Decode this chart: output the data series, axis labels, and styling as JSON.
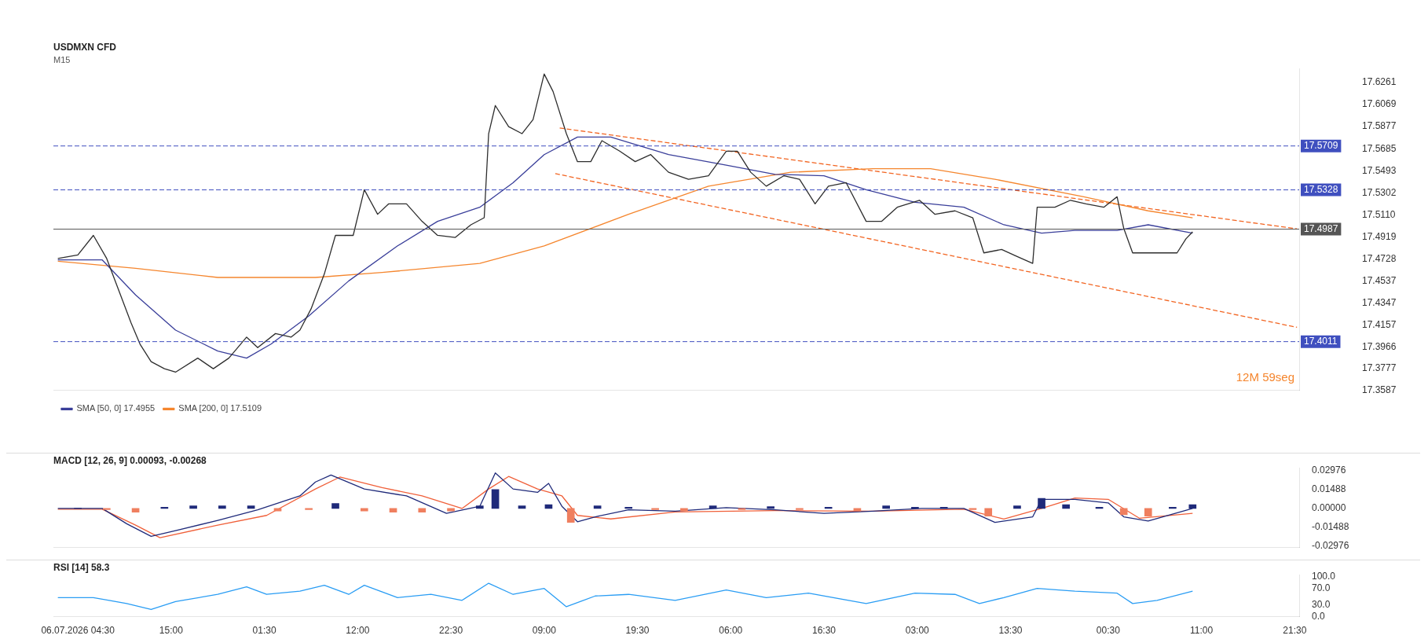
{
  "chart_data": [
    {
      "type": "line",
      "title": "USDMXN CFD",
      "subtitle": "M15",
      "legend": "bottom left",
      "marker": "none",
      "tick_labels": "y",
      "annotations": [
        "12M 59seg"
      ],
      "xlim": [
        "2026-07-06T01:45",
        "2026-07-11T22:00"
      ],
      "xticks": [
        {
          "value": "2026-07-06T04:30",
          "label": null
        },
        {
          "value": "2026-07-06T15:00",
          "label": null
        },
        {
          "value": "2026-07-07T01:30",
          "label": null
        },
        {
          "value": "2026-07-07T12:00",
          "label": null
        },
        {
          "value": "2026-07-07T22:30",
          "label": null
        },
        {
          "value": "2026-07-08T09:00",
          "label": null
        },
        {
          "value": "2026-07-08T19:30",
          "label": null
        },
        {
          "value": "2026-07-09T06:00",
          "label": null
        },
        {
          "value": "2026-07-09T16:30",
          "label": null
        },
        {
          "value": "2026-07-10T03:00",
          "label": null
        },
        {
          "value": "2026-07-10T13:30",
          "label": null
        },
        {
          "value": "2026-07-11T00:30",
          "label": null
        },
        {
          "value": "2026-07-11T11:00",
          "label": null
        },
        {
          "value": "2026-07-11T21:30",
          "label": null
        }
      ],
      "ylim": [
        17.3587,
        17.6381
      ],
      "yticks": [
        17.3587,
        17.3777,
        17.3966,
        17.4157,
        17.4347,
        17.4537,
        17.4728,
        17.4919,
        {
          "value": 17.511,
          "label": "17.5110"
        },
        17.5302,
        17.5493,
        17.5685,
        17.5877,
        17.6069,
        17.6261
      ],
      "ref_lines": [
        {
          "axis": "y",
          "value": 17.5709,
          "label": "17.5709",
          "color": "#3f4fbf",
          "line_style": "dashed"
        },
        {
          "axis": "y",
          "value": 17.5328,
          "label": "17.5328",
          "color": "#3f4fbf",
          "line_style": "dashed"
        },
        {
          "axis": "y",
          "value": 17.4011,
          "label": "17.4011",
          "color": "#3f4fbf",
          "line_style": "dashed"
        },
        {
          "axis": "y",
          "value": 17.4987,
          "label": "17.4987",
          "color": "#555555",
          "line_style": "solid"
        }
      ],
      "series": [
        {
          "color": "#2e2e2e",
          "x": [
            "2026-07-06T02:15",
            "2026-07-06T04:30",
            "2026-07-06T06:15",
            "2026-07-06T07:45",
            "2026-07-06T09:00",
            "2026-07-06T10:30",
            "2026-07-06T11:30",
            "2026-07-06T12:45",
            "2026-07-06T14:15",
            "2026-07-06T15:30",
            "2026-07-06T18:00",
            "2026-07-06T19:45",
            "2026-07-06T21:30",
            "2026-07-06T23:30",
            "2026-07-07T00:45",
            "2026-07-07T02:45",
            "2026-07-07T04:30",
            "2026-07-07T05:30",
            "2026-07-07T06:45",
            "2026-07-07T08:15",
            "2026-07-07T09:30",
            "2026-07-07T11:30",
            "2026-07-07T12:45",
            "2026-07-07T14:15",
            "2026-07-07T15:30",
            "2026-07-07T17:30",
            "2026-07-07T19:15",
            "2026-07-07T21:00",
            "2026-07-07T23:00",
            "2026-07-08T00:45",
            "2026-07-08T02:15",
            "2026-07-08T02:45",
            "2026-07-08T03:30",
            "2026-07-08T05:00",
            "2026-07-08T06:30",
            "2026-07-08T07:45",
            "2026-07-08T09:00",
            "2026-07-08T10:00",
            "2026-07-08T11:30",
            "2026-07-08T12:45",
            "2026-07-08T14:15",
            "2026-07-08T15:30",
            "2026-07-08T17:30",
            "2026-07-08T19:15",
            "2026-07-08T21:00",
            "2026-07-08T23:00",
            "2026-07-09T01:15",
            "2026-07-09T03:30",
            "2026-07-09T05:30",
            "2026-07-09T06:45",
            "2026-07-09T08:15",
            "2026-07-09T10:00",
            "2026-07-09T12:00",
            "2026-07-09T13:45",
            "2026-07-09T15:30",
            "2026-07-09T17:00",
            "2026-07-09T19:00",
            "2026-07-09T21:15",
            "2026-07-09T23:00",
            "2026-07-10T00:45",
            "2026-07-10T03:15",
            "2026-07-10T05:00",
            "2026-07-10T07:15",
            "2026-07-10T09:15",
            "2026-07-10T10:30",
            "2026-07-10T12:30",
            "2026-07-10T14:15",
            "2026-07-10T16:00",
            "2026-07-10T16:30",
            "2026-07-10T18:30",
            "2026-07-10T20:15",
            "2026-07-10T22:00",
            "2026-07-11T00:00",
            "2026-07-11T01:30",
            "2026-07-11T02:15",
            "2026-07-11T03:15",
            "2026-07-11T05:00",
            "2026-07-11T07:00",
            "2026-07-11T08:15",
            "2026-07-11T09:15",
            "2026-07-11T10:00"
          ],
          "values": [
            17.4732,
            17.4763,
            17.4933,
            17.4732,
            17.4477,
            17.4172,
            17.3989,
            17.3837,
            17.3776,
            17.3746,
            17.3868,
            17.3776,
            17.3868,
            17.405,
            17.3959,
            17.4081,
            17.405,
            17.4111,
            17.4294,
            17.4598,
            17.4933,
            17.4933,
            17.5329,
            17.5116,
            17.5207,
            17.5207,
            17.5055,
            17.4933,
            17.4915,
            17.5025,
            17.5086,
            17.5816,
            17.606,
            17.5877,
            17.5816,
            17.5938,
            17.6334,
            17.6182,
            17.5816,
            17.5573,
            17.5573,
            17.5755,
            17.5664,
            17.5573,
            17.5634,
            17.5481,
            17.542,
            17.5451,
            17.5664,
            17.5664,
            17.5481,
            17.536,
            17.5451,
            17.542,
            17.5207,
            17.536,
            17.539,
            17.5055,
            17.5055,
            17.5177,
            17.5238,
            17.5116,
            17.5146,
            17.5086,
            17.4781,
            17.4811,
            17.475,
            17.469,
            17.5177,
            17.5177,
            17.5238,
            17.5207,
            17.5177,
            17.5268,
            17.4994,
            17.4781,
            17.4781,
            17.4781,
            17.4781,
            17.4903,
            17.4964
          ]
        },
        {
          "name": "SMA [50, 0] 17.4955",
          "color": "#3a3f9a",
          "x": [
            "2026-07-06T02:15",
            "2026-07-06T07:15",
            "2026-07-06T11:00",
            "2026-07-06T15:30",
            "2026-07-06T20:15",
            "2026-07-06T23:30",
            "2026-07-07T02:15",
            "2026-07-07T06:30",
            "2026-07-07T11:00",
            "2026-07-07T16:30",
            "2026-07-07T21:00",
            "2026-07-08T01:45",
            "2026-07-08T05:30",
            "2026-07-08T09:00",
            "2026-07-08T12:45",
            "2026-07-08T16:30",
            "2026-07-08T23:00",
            "2026-07-09T05:30",
            "2026-07-09T11:00",
            "2026-07-09T16:30",
            "2026-07-09T21:15",
            "2026-07-10T02:45",
            "2026-07-10T08:15",
            "2026-07-10T12:45",
            "2026-07-10T17:00",
            "2026-07-10T20:45",
            "2026-07-11T01:30",
            "2026-07-11T05:00",
            "2026-07-11T10:00"
          ],
          "values": [
            17.472,
            17.472,
            17.4416,
            17.4111,
            17.3929,
            17.3868,
            17.399,
            17.4233,
            17.4538,
            17.4842,
            17.5055,
            17.5177,
            17.539,
            17.5634,
            17.5786,
            17.5786,
            17.5634,
            17.5542,
            17.5463,
            17.5451,
            17.5329,
            17.522,
            17.5177,
            17.5025,
            17.4952,
            17.4976,
            17.4976,
            17.5025,
            17.4952
          ]
        },
        {
          "name": "SMA [200, 0] 17.5109",
          "color": "#f5862e",
          "x": [
            "2026-07-06T02:15",
            "2026-07-06T11:00",
            "2026-07-06T20:15",
            "2026-07-07T01:45",
            "2026-07-07T07:15",
            "2026-07-07T14:45",
            "2026-07-08T01:45",
            "2026-07-08T09:00",
            "2026-07-08T18:30",
            "2026-07-09T03:30",
            "2026-07-09T12:45",
            "2026-07-09T22:00",
            "2026-07-10T04:30",
            "2026-07-10T11:45",
            "2026-07-10T21:45",
            "2026-07-11T05:00",
            "2026-07-11T10:00"
          ],
          "values": [
            17.4708,
            17.4647,
            17.4568,
            17.4568,
            17.4568,
            17.4611,
            17.469,
            17.4842,
            17.5116,
            17.536,
            17.5481,
            17.5512,
            17.5512,
            17.542,
            17.5268,
            17.5146,
            17.5086
          ]
        },
        {
          "color": "#f26522",
          "line_style": "dashed",
          "x": [
            "2026-07-08T10:45",
            "2026-07-11T21:45"
          ],
          "values": [
            17.5865,
            17.499
          ]
        },
        {
          "color": "#f26522",
          "line_style": "dashed",
          "x": [
            "2026-07-08T10:15",
            "2026-07-11T21:45"
          ],
          "values": [
            17.5469,
            17.4135
          ]
        }
      ]
    },
    {
      "type": "line",
      "title": "MACD [12, 26, 9] 0.00093, -0.00268",
      "marker": "none",
      "tick_labels": "y",
      "xlim": [
        "2026-07-06T01:45",
        "2026-07-11T22:00"
      ],
      "ylim": [
        -0.031,
        0.032
      ],
      "yticks": [
        {
          "value": -0.02976,
          "label": "-0.02976"
        },
        {
          "value": -0.01488,
          "label": "-0.01488"
        },
        {
          "value": 0,
          "label": "0.00000"
        },
        {
          "value": 0.01488,
          "label": "0.01488"
        },
        {
          "value": 0.02976,
          "label": "0.02976"
        }
      ],
      "series": [
        {
          "type": "bar",
          "x": [
            "2026-07-06T04:30",
            "2026-07-06T07:45",
            "2026-07-06T11:00",
            "2026-07-06T14:15",
            "2026-07-06T17:30",
            "2026-07-06T20:45",
            "2026-07-07T00:00",
            "2026-07-07T03:00",
            "2026-07-07T06:30",
            "2026-07-07T09:30",
            "2026-07-07T12:45",
            "2026-07-07T16:00",
            "2026-07-07T19:15",
            "2026-07-07T22:30",
            "2026-07-08T01:45",
            "2026-07-08T03:30",
            "2026-07-08T06:30",
            "2026-07-08T09:30",
            "2026-07-08T12:00",
            "2026-07-08T15:00",
            "2026-07-08T18:30",
            "2026-07-08T21:30",
            "2026-07-09T00:45",
            "2026-07-09T04:00",
            "2026-07-09T07:15",
            "2026-07-09T10:30",
            "2026-07-09T13:45",
            "2026-07-09T17:00",
            "2026-07-09T20:15",
            "2026-07-09T23:30",
            "2026-07-10T02:45",
            "2026-07-10T06:00",
            "2026-07-10T09:15",
            "2026-07-10T11:00",
            "2026-07-10T14:15",
            "2026-07-10T17:00",
            "2026-07-10T19:45",
            "2026-07-10T23:30",
            "2026-07-11T02:15",
            "2026-07-11T05:00",
            "2026-07-11T07:45",
            "2026-07-11T10:00"
          ],
          "values": [
            0.0003,
            -0.001,
            -0.003,
            0.001,
            0.002,
            0.002,
            0.002,
            -0.002,
            -0.001,
            0.004,
            -0.002,
            -0.003,
            -0.003,
            -0.002,
            0.002,
            0.015,
            0.002,
            0.003,
            -0.011,
            0.002,
            0.001,
            -0.001,
            -0.002,
            0.002,
            -0.001,
            0.0015,
            -0.001,
            0.001,
            -0.002,
            0.002,
            0.001,
            0.001,
            -0.001,
            -0.006,
            0.002,
            0.008,
            0.003,
            0.001,
            -0.005,
            -0.006,
            0.001,
            0.003
          ],
          "colors": [
            "#1f2a7a",
            "#ef7f5f",
            "#ef7f5f",
            "#1f2a7a",
            "#1f2a7a",
            "#1f2a7a",
            "#1f2a7a",
            "#ef7f5f",
            "#ef7f5f",
            "#1f2a7a",
            "#ef7f5f",
            "#ef7f5f",
            "#ef7f5f",
            "#ef7f5f",
            "#1f2a7a",
            "#1f2a7a",
            "#1f2a7a",
            "#1f2a7a",
            "#ef7f5f",
            "#1f2a7a",
            "#1f2a7a",
            "#ef7f5f",
            "#ef7f5f",
            "#1f2a7a",
            "#ef7f5f",
            "#1f2a7a",
            "#ef7f5f",
            "#1f2a7a",
            "#ef7f5f",
            "#1f2a7a",
            "#1f2a7a",
            "#1f2a7a",
            "#ef7f5f",
            "#ef7f5f",
            "#1f2a7a",
            "#1f2a7a",
            "#1f2a7a",
            "#1f2a7a",
            "#ef7f5f",
            "#ef7f5f",
            "#1f2a7a",
            "#1f2a7a"
          ]
        },
        {
          "color": "#1f2a7a",
          "x": [
            "2026-07-06T02:15",
            "2026-07-06T07:15",
            "2026-07-06T10:00",
            "2026-07-06T12:45",
            "2026-07-06T15:30",
            "2026-07-06T20:15",
            "2026-07-07T00:45",
            "2026-07-07T05:30",
            "2026-07-07T07:15",
            "2026-07-07T09:00",
            "2026-07-07T12:45",
            "2026-07-07T17:30",
            "2026-07-07T22:00",
            "2026-07-08T01:45",
            "2026-07-08T03:30",
            "2026-07-08T05:30",
            "2026-07-08T08:15",
            "2026-07-08T09:30",
            "2026-07-08T11:00",
            "2026-07-08T12:45",
            "2026-07-08T14:45",
            "2026-07-08T18:30",
            "2026-07-08T23:45",
            "2026-07-09T05:30",
            "2026-07-09T11:00",
            "2026-07-09T16:30",
            "2026-07-09T22:00",
            "2026-07-10T03:30",
            "2026-07-10T08:15",
            "2026-07-10T11:45",
            "2026-07-10T16:00",
            "2026-07-10T17:00",
            "2026-07-10T20:45",
            "2026-07-11T00:30",
            "2026-07-11T02:15",
            "2026-07-11T05:00",
            "2026-07-11T10:00"
          ],
          "values": [
            0,
            0,
            -0.0121,
            -0.022,
            -0.0176,
            -0.0094,
            -0.0011,
            0.0099,
            0.0209,
            0.0264,
            0.0154,
            0.0099,
            -0.0039,
            0.0017,
            0.0281,
            0.0154,
            0.0127,
            0.0198,
            0.0017,
            -0.0105,
            -0.0066,
            -0.0011,
            -0.0022,
            0.0006,
            -0.0011,
            -0.0039,
            -0.0022,
            0,
            0,
            -0.011,
            -0.0066,
            0.0072,
            0.0072,
            0.0044,
            -0.0066,
            -0.0099,
            0
          ]
        },
        {
          "color": "#f0603a",
          "x": [
            "2026-07-06T02:15",
            "2026-07-06T07:15",
            "2026-07-06T11:00",
            "2026-07-06T13:45",
            "2026-07-06T20:15",
            "2026-07-07T01:45",
            "2026-07-07T07:15",
            "2026-07-07T10:00",
            "2026-07-07T14:45",
            "2026-07-07T19:15",
            "2026-07-07T23:45",
            "2026-07-08T02:45",
            "2026-07-08T05:00",
            "2026-07-08T08:15",
            "2026-07-08T11:00",
            "2026-07-08T12:45",
            "2026-07-08T16:30",
            "2026-07-08T23:45",
            "2026-07-09T11:00",
            "2026-07-09T22:00",
            "2026-07-10T08:15",
            "2026-07-10T12:45",
            "2026-07-10T17:00",
            "2026-07-10T20:45",
            "2026-07-11T00:30",
            "2026-07-11T04:00",
            "2026-07-11T10:00"
          ],
          "values": [
            -0.0006,
            -0.0006,
            -0.0132,
            -0.0231,
            -0.0132,
            -0.0055,
            0.0154,
            0.0248,
            0.0165,
            0.0099,
            0,
            0.0154,
            0.0253,
            0.0154,
            0.0099,
            -0.0055,
            -0.0083,
            -0.0028,
            -0.0017,
            -0.0022,
            -0.0006,
            -0.0083,
            0,
            0.0083,
            0.0072,
            -0.0077,
            -0.0039
          ]
        }
      ]
    },
    {
      "type": "line",
      "title": "RSI [14] 58.3",
      "marker": "none",
      "xlim": [
        "2026-07-06T01:45",
        "2026-07-11T22:00"
      ],
      "xticks": [
        {
          "value": "2026-07-06T04:30",
          "label": "06.07.2026 04:30"
        },
        {
          "value": "2026-07-06T15:00",
          "label": "15:00"
        },
        {
          "value": "2026-07-07T01:30",
          "label": "01:30"
        },
        {
          "value": "2026-07-07T12:00",
          "label": "12:00"
        },
        {
          "value": "2026-07-07T22:30",
          "label": "22:30"
        },
        {
          "value": "2026-07-08T09:00",
          "label": "09:00"
        },
        {
          "value": "2026-07-08T19:30",
          "label": "19:30"
        },
        {
          "value": "2026-07-09T06:00",
          "label": "06:00"
        },
        {
          "value": "2026-07-09T16:30",
          "label": "16:30"
        },
        {
          "value": "2026-07-10T03:00",
          "label": "03:00"
        },
        {
          "value": "2026-07-10T13:30",
          "label": "13:30"
        },
        {
          "value": "2026-07-11T00:30",
          "label": "00:30"
        },
        {
          "value": "2026-07-11T11:00",
          "label": "11:00"
        },
        {
          "value": "2026-07-11T21:30",
          "label": "21:30"
        }
      ],
      "ylim": [
        0,
        105
      ],
      "yticks": [
        {
          "value": 0,
          "label": "0.0"
        },
        {
          "value": 30,
          "label": "30.0"
        },
        {
          "value": 70,
          "label": "70.0"
        },
        {
          "value": 100,
          "label": "100.0"
        }
      ],
      "series": [
        {
          "color": "#2a9df4",
          "x": [
            "2026-07-06T02:15",
            "2026-07-06T06:15",
            "2026-07-06T10:00",
            "2026-07-06T12:45",
            "2026-07-06T15:30",
            "2026-07-06T20:15",
            "2026-07-06T23:30",
            "2026-07-07T01:45",
            "2026-07-07T05:30",
            "2026-07-07T08:15",
            "2026-07-07T11:00",
            "2026-07-07T12:45",
            "2026-07-07T16:30",
            "2026-07-07T20:15",
            "2026-07-07T23:45",
            "2026-07-08T02:45",
            "2026-07-08T05:30",
            "2026-07-08T09:00",
            "2026-07-08T11:30",
            "2026-07-08T14:45",
            "2026-07-08T18:30",
            "2026-07-08T23:45",
            "2026-07-09T05:30",
            "2026-07-09T10:00",
            "2026-07-09T14:45",
            "2026-07-09T21:15",
            "2026-07-10T02:45",
            "2026-07-10T07:15",
            "2026-07-10T10:00",
            "2026-07-10T12:45",
            "2026-07-10T16:30",
            "2026-07-10T20:45",
            "2026-07-11T01:30",
            "2026-07-11T03:15",
            "2026-07-11T06:00",
            "2026-07-11T10:00"
          ],
          "values": [
            48,
            48,
            33,
            18,
            38,
            56,
            75,
            56,
            64,
            79,
            56,
            79,
            48,
            56,
            41,
            84,
            56,
            71,
            25,
            52,
            56,
            41,
            67,
            48,
            59,
            33,
            59,
            56,
            33,
            48,
            71,
            64,
            59,
            33,
            41,
            64
          ]
        }
      ]
    }
  ]
}
